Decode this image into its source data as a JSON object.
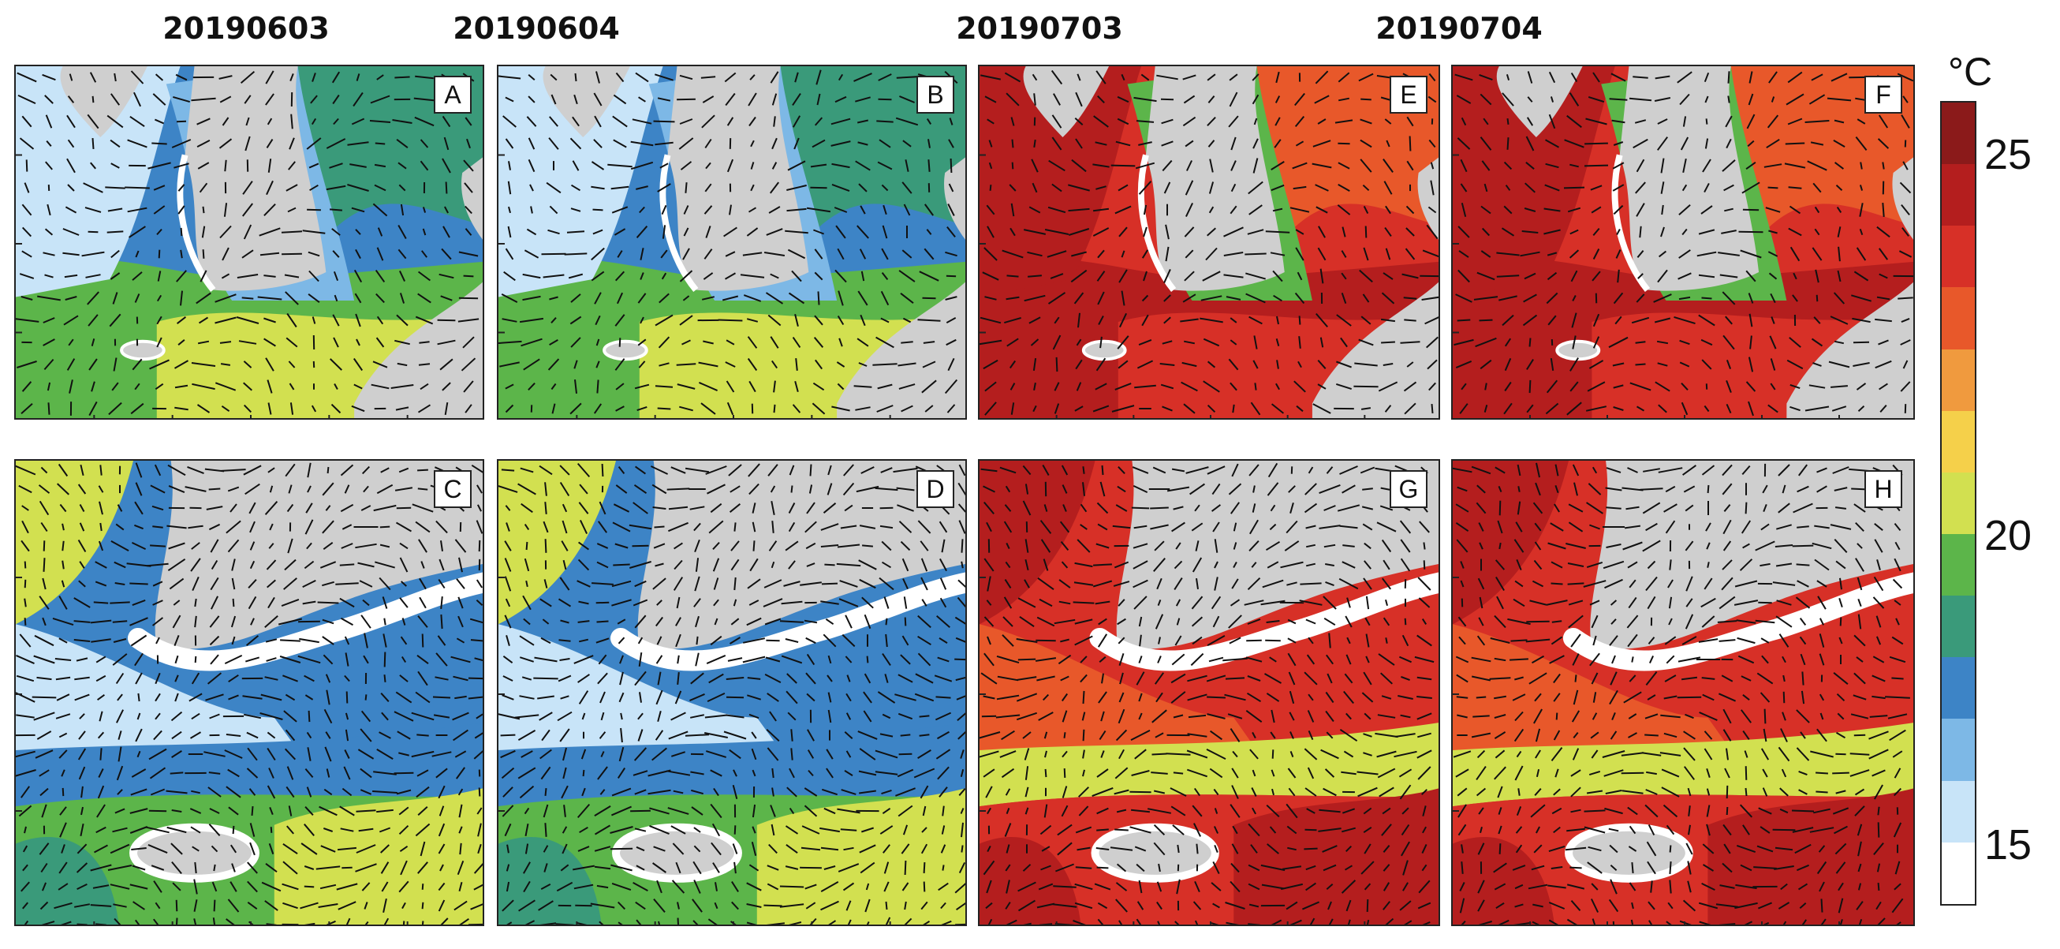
{
  "figure": {
    "column_titles": [
      "20190603",
      "20190604",
      "20190703",
      "20190704"
    ],
    "panels": [
      {
        "label": "A",
        "date": "20190603",
        "view": "regional",
        "sst_class": "cool"
      },
      {
        "label": "B",
        "date": "20190604",
        "view": "regional",
        "sst_class": "cool"
      },
      {
        "label": "E",
        "date": "20190703",
        "view": "regional",
        "sst_class": "warm"
      },
      {
        "label": "F",
        "date": "20190704",
        "view": "regional",
        "sst_class": "warm"
      },
      {
        "label": "C",
        "date": "20190603",
        "view": "zoom",
        "sst_class": "cool"
      },
      {
        "label": "D",
        "date": "20190604",
        "view": "zoom",
        "sst_class": "cool"
      },
      {
        "label": "G",
        "date": "20190703",
        "view": "zoom",
        "sst_class": "warm"
      },
      {
        "label": "H",
        "date": "20190704",
        "view": "zoom",
        "sst_class": "warm"
      }
    ]
  },
  "colorbar": {
    "unit": "°C",
    "labels": [
      "25",
      "20",
      "15"
    ],
    "label_values": [
      25,
      20,
      15
    ],
    "min": 14,
    "max": 26,
    "step": 1,
    "colors_top_to_bottom": [
      "#8b1a1a",
      "#b41e1e",
      "#d73027",
      "#e8582a",
      "#f09a3e",
      "#f5d04a",
      "#d2e050",
      "#5cb54a",
      "#3a9a7a",
      "#3d84c6",
      "#7db8e6",
      "#c8e4f8",
      "#ffffff"
    ]
  },
  "colors": {
    "land": "#cfcfcf",
    "coast_fill": "#ffffff",
    "vector": "#111111"
  }
}
